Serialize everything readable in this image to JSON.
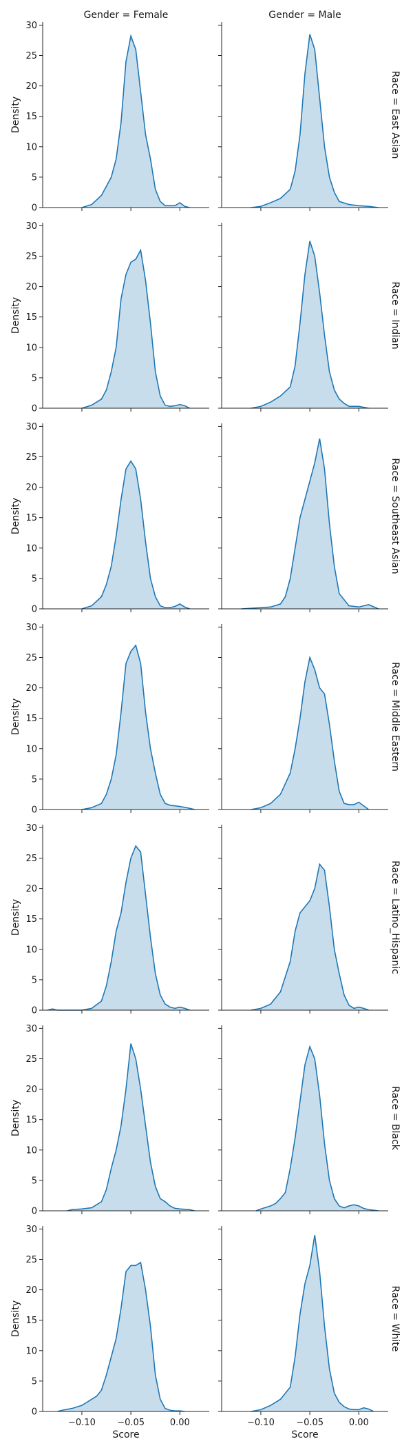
{
  "chart_data": {
    "type": "area",
    "col_titles": [
      "Gender = Female",
      "Gender = Male"
    ],
    "row_titles": [
      "Race = East Asian",
      "Race = Indian",
      "Race = Southeast Asian",
      "Race = Middle Eastern",
      "Race = Latino_Hispanic",
      "Race = Black",
      "Race = White"
    ],
    "xlabel": "Score",
    "ylabel": "Density",
    "xlim": [
      -0.14,
      0.03
    ],
    "ylim": [
      0,
      30.5
    ],
    "xticks": [
      -0.1,
      -0.05,
      0.0
    ],
    "xtick_labels": [
      "−0.10",
      "−0.05",
      "0.00"
    ],
    "yticks": [
      0,
      5,
      10,
      15,
      20,
      25,
      30
    ],
    "ytick_labels": [
      "0",
      "5",
      "10",
      "15",
      "20",
      "25",
      "30"
    ],
    "color": "#1f77b4",
    "panels": [
      {
        "row": 0,
        "col": 0,
        "x": [
          -0.1,
          -0.09,
          -0.08,
          -0.07,
          -0.065,
          -0.06,
          -0.055,
          -0.05,
          -0.045,
          -0.04,
          -0.035,
          -0.03,
          -0.025,
          -0.02,
          -0.015,
          -0.01,
          -0.005,
          0.0,
          0.005,
          0.01
        ],
        "y": [
          0,
          0.5,
          2,
          5,
          8,
          14,
          24,
          28.2,
          26,
          19,
          12,
          8,
          3,
          1,
          0.3,
          0.3,
          0.3,
          0.8,
          0.2,
          0
        ]
      },
      {
        "row": 0,
        "col": 1,
        "x": [
          -0.11,
          -0.1,
          -0.09,
          -0.08,
          -0.07,
          -0.065,
          -0.06,
          -0.055,
          -0.05,
          -0.045,
          -0.04,
          -0.035,
          -0.03,
          -0.025,
          -0.02,
          -0.01,
          0.0,
          0.01,
          0.02
        ],
        "y": [
          0,
          0.2,
          0.8,
          1.5,
          3,
          6,
          12,
          22,
          28.5,
          26,
          18,
          10,
          5,
          2.5,
          1,
          0.5,
          0.3,
          0.2,
          0
        ]
      },
      {
        "row": 1,
        "col": 0,
        "x": [
          -0.1,
          -0.09,
          -0.08,
          -0.075,
          -0.07,
          -0.065,
          -0.06,
          -0.055,
          -0.05,
          -0.045,
          -0.04,
          -0.035,
          -0.03,
          -0.025,
          -0.02,
          -0.015,
          -0.01,
          -0.005,
          0.0,
          0.005,
          0.01
        ],
        "y": [
          0,
          0.5,
          1.5,
          3,
          6,
          10,
          18,
          22,
          24,
          24.5,
          26,
          21,
          14,
          6,
          2,
          0.5,
          0.3,
          0.4,
          0.6,
          0.4,
          0
        ]
      },
      {
        "row": 1,
        "col": 1,
        "x": [
          -0.11,
          -0.1,
          -0.09,
          -0.08,
          -0.07,
          -0.065,
          -0.06,
          -0.055,
          -0.05,
          -0.045,
          -0.04,
          -0.035,
          -0.03,
          -0.025,
          -0.02,
          -0.015,
          -0.01,
          0.0,
          0.01
        ],
        "y": [
          0,
          0.3,
          1,
          2,
          3.5,
          7,
          14,
          22,
          27.5,
          25,
          19,
          12,
          6,
          3,
          1.5,
          0.8,
          0.3,
          0.3,
          0
        ]
      },
      {
        "row": 2,
        "col": 0,
        "x": [
          -0.1,
          -0.09,
          -0.08,
          -0.075,
          -0.07,
          -0.065,
          -0.06,
          -0.055,
          -0.05,
          -0.045,
          -0.04,
          -0.035,
          -0.03,
          -0.025,
          -0.02,
          -0.015,
          -0.01,
          -0.005,
          0.0,
          0.005,
          0.01
        ],
        "y": [
          0,
          0.5,
          2,
          4,
          7,
          12,
          18,
          23,
          24.3,
          23,
          18,
          11,
          5,
          2,
          0.5,
          0.2,
          0.2,
          0.4,
          0.8,
          0.3,
          0
        ]
      },
      {
        "row": 2,
        "col": 1,
        "x": [
          -0.12,
          -0.11,
          -0.1,
          -0.09,
          -0.08,
          -0.075,
          -0.07,
          -0.065,
          -0.06,
          -0.055,
          -0.05,
          -0.045,
          -0.04,
          -0.035,
          -0.03,
          -0.025,
          -0.02,
          -0.01,
          0.0,
          0.01,
          0.02
        ],
        "y": [
          0,
          0.1,
          0.2,
          0.3,
          0.8,
          2,
          5,
          10,
          15,
          18,
          21,
          24,
          28,
          23,
          14,
          7,
          2.5,
          0.5,
          0.3,
          0.7,
          0
        ]
      },
      {
        "row": 3,
        "col": 0,
        "x": [
          -0.1,
          -0.09,
          -0.08,
          -0.075,
          -0.07,
          -0.065,
          -0.06,
          -0.055,
          -0.05,
          -0.045,
          -0.04,
          -0.035,
          -0.03,
          -0.025,
          -0.02,
          -0.015,
          -0.01,
          0.0,
          0.01,
          0.015
        ],
        "y": [
          0,
          0.3,
          1,
          2.5,
          5,
          9,
          16,
          24,
          26,
          27,
          24,
          16,
          10,
          6,
          2.5,
          1,
          0.7,
          0.5,
          0.2,
          0
        ]
      },
      {
        "row": 3,
        "col": 1,
        "x": [
          -0.11,
          -0.1,
          -0.09,
          -0.08,
          -0.07,
          -0.065,
          -0.06,
          -0.055,
          -0.05,
          -0.045,
          -0.04,
          -0.035,
          -0.03,
          -0.025,
          -0.02,
          -0.015,
          -0.01,
          -0.005,
          0.0,
          0.005,
          0.01
        ],
        "y": [
          0,
          0.3,
          1,
          2.5,
          6,
          10,
          15,
          21,
          25,
          23,
          20,
          19,
          14,
          8,
          3,
          1,
          0.8,
          0.8,
          1.2,
          0.6,
          0
        ]
      },
      {
        "row": 4,
        "col": 0,
        "x": [
          -0.135,
          -0.13,
          -0.125,
          -0.1,
          -0.09,
          -0.08,
          -0.075,
          -0.07,
          -0.065,
          -0.06,
          -0.055,
          -0.05,
          -0.045,
          -0.04,
          -0.035,
          -0.03,
          -0.025,
          -0.02,
          -0.015,
          -0.01,
          -0.005,
          0.0,
          0.005,
          0.01
        ],
        "y": [
          0,
          0.2,
          0,
          0,
          0.3,
          1.5,
          4,
          8,
          13,
          16,
          21,
          25,
          27,
          26,
          19,
          12,
          6,
          2.5,
          1,
          0.5,
          0.3,
          0.5,
          0.3,
          0
        ]
      },
      {
        "row": 4,
        "col": 1,
        "x": [
          -0.11,
          -0.1,
          -0.09,
          -0.08,
          -0.07,
          -0.065,
          -0.06,
          -0.055,
          -0.05,
          -0.045,
          -0.04,
          -0.035,
          -0.03,
          -0.025,
          -0.02,
          -0.015,
          -0.01,
          -0.005,
          0.0,
          0.005,
          0.01
        ],
        "y": [
          0,
          0.3,
          1,
          3,
          8,
          13,
          16,
          17,
          18,
          20,
          24,
          23,
          17,
          10,
          6,
          2.5,
          0.8,
          0.3,
          0.5,
          0.3,
          0
        ]
      },
      {
        "row": 5,
        "col": 0,
        "x": [
          -0.115,
          -0.11,
          -0.1,
          -0.09,
          -0.08,
          -0.075,
          -0.07,
          -0.065,
          -0.06,
          -0.055,
          -0.05,
          -0.045,
          -0.04,
          -0.035,
          -0.03,
          -0.025,
          -0.02,
          -0.015,
          -0.01,
          -0.005,
          0.0,
          0.01,
          0.015
        ],
        "y": [
          0,
          0.2,
          0.3,
          0.5,
          1.5,
          3.5,
          7,
          10,
          14,
          20,
          27.5,
          25,
          20,
          14,
          8,
          4,
          2,
          1.5,
          0.8,
          0.4,
          0.3,
          0.2,
          0
        ]
      },
      {
        "row": 5,
        "col": 1,
        "x": [
          -0.105,
          -0.1,
          -0.09,
          -0.085,
          -0.08,
          -0.075,
          -0.07,
          -0.065,
          -0.06,
          -0.055,
          -0.05,
          -0.045,
          -0.04,
          -0.035,
          -0.03,
          -0.025,
          -0.02,
          -0.015,
          -0.01,
          -0.005,
          0.0,
          0.005,
          0.01,
          0.02
        ],
        "y": [
          0,
          0.3,
          0.8,
          1.2,
          2,
          3,
          7,
          12,
          18,
          24,
          27,
          25,
          19,
          11,
          5,
          2,
          0.8,
          0.5,
          0.8,
          1,
          0.8,
          0.4,
          0.2,
          0
        ]
      },
      {
        "row": 6,
        "col": 0,
        "x": [
          -0.125,
          -0.12,
          -0.11,
          -0.1,
          -0.09,
          -0.085,
          -0.08,
          -0.075,
          -0.07,
          -0.065,
          -0.06,
          -0.055,
          -0.05,
          -0.045,
          -0.04,
          -0.035,
          -0.03,
          -0.025,
          -0.02,
          -0.015,
          -0.01,
          -0.005,
          0.0,
          0.005
        ],
        "y": [
          0,
          0.2,
          0.5,
          1,
          2,
          2.5,
          3.5,
          6,
          9,
          12,
          17,
          23,
          24,
          24,
          24.5,
          20,
          14,
          6,
          2,
          0.5,
          0.2,
          0.1,
          0.1,
          0
        ]
      },
      {
        "row": 6,
        "col": 1,
        "x": [
          -0.11,
          -0.1,
          -0.09,
          -0.08,
          -0.07,
          -0.065,
          -0.06,
          -0.055,
          -0.05,
          -0.045,
          -0.04,
          -0.035,
          -0.03,
          -0.025,
          -0.02,
          -0.015,
          -0.01,
          -0.005,
          0.0,
          0.005,
          0.01,
          0.015
        ],
        "y": [
          0,
          0.3,
          1,
          2,
          4,
          9,
          16,
          21,
          24,
          29,
          23,
          14,
          7,
          3,
          1.5,
          0.8,
          0.4,
          0.3,
          0.3,
          0.6,
          0.4,
          0
        ]
      }
    ]
  }
}
